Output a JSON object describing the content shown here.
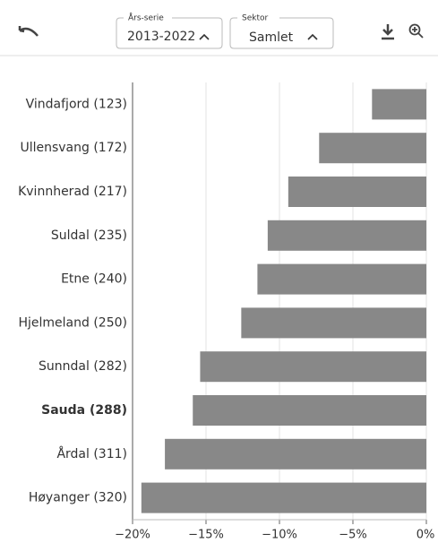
{
  "toolbar": {
    "year_label": "Års-serie",
    "year_value": "2013-2022",
    "sector_label": "Sektor",
    "sector_value": "Samlet"
  },
  "chart_data": {
    "type": "bar",
    "orientation": "horizontal",
    "categories": [
      "Vindafjord (123)",
      "Ullensvang (172)",
      "Kvinnherad (217)",
      "Suldal (235)",
      "Etne (240)",
      "Hjelmeland (250)",
      "Sunndal (282)",
      "Sauda (288)",
      "Årdal (311)",
      "Høyanger (320)"
    ],
    "values": [
      -3.7,
      -7.3,
      -9.4,
      -10.8,
      -11.5,
      -12.6,
      -15.4,
      -15.9,
      -17.8,
      -19.4
    ],
    "color": "#888888",
    "highlight": "Sauda (288)",
    "xlim": [
      -20,
      0
    ],
    "xticks": [
      {
        "value": -20,
        "label": "−20%"
      },
      {
        "value": -15,
        "label": "−15%"
      },
      {
        "value": -10,
        "label": "−10%"
      },
      {
        "value": -5,
        "label": "−5%"
      },
      {
        "value": 0,
        "label": "0%"
      }
    ],
    "grid": true
  }
}
